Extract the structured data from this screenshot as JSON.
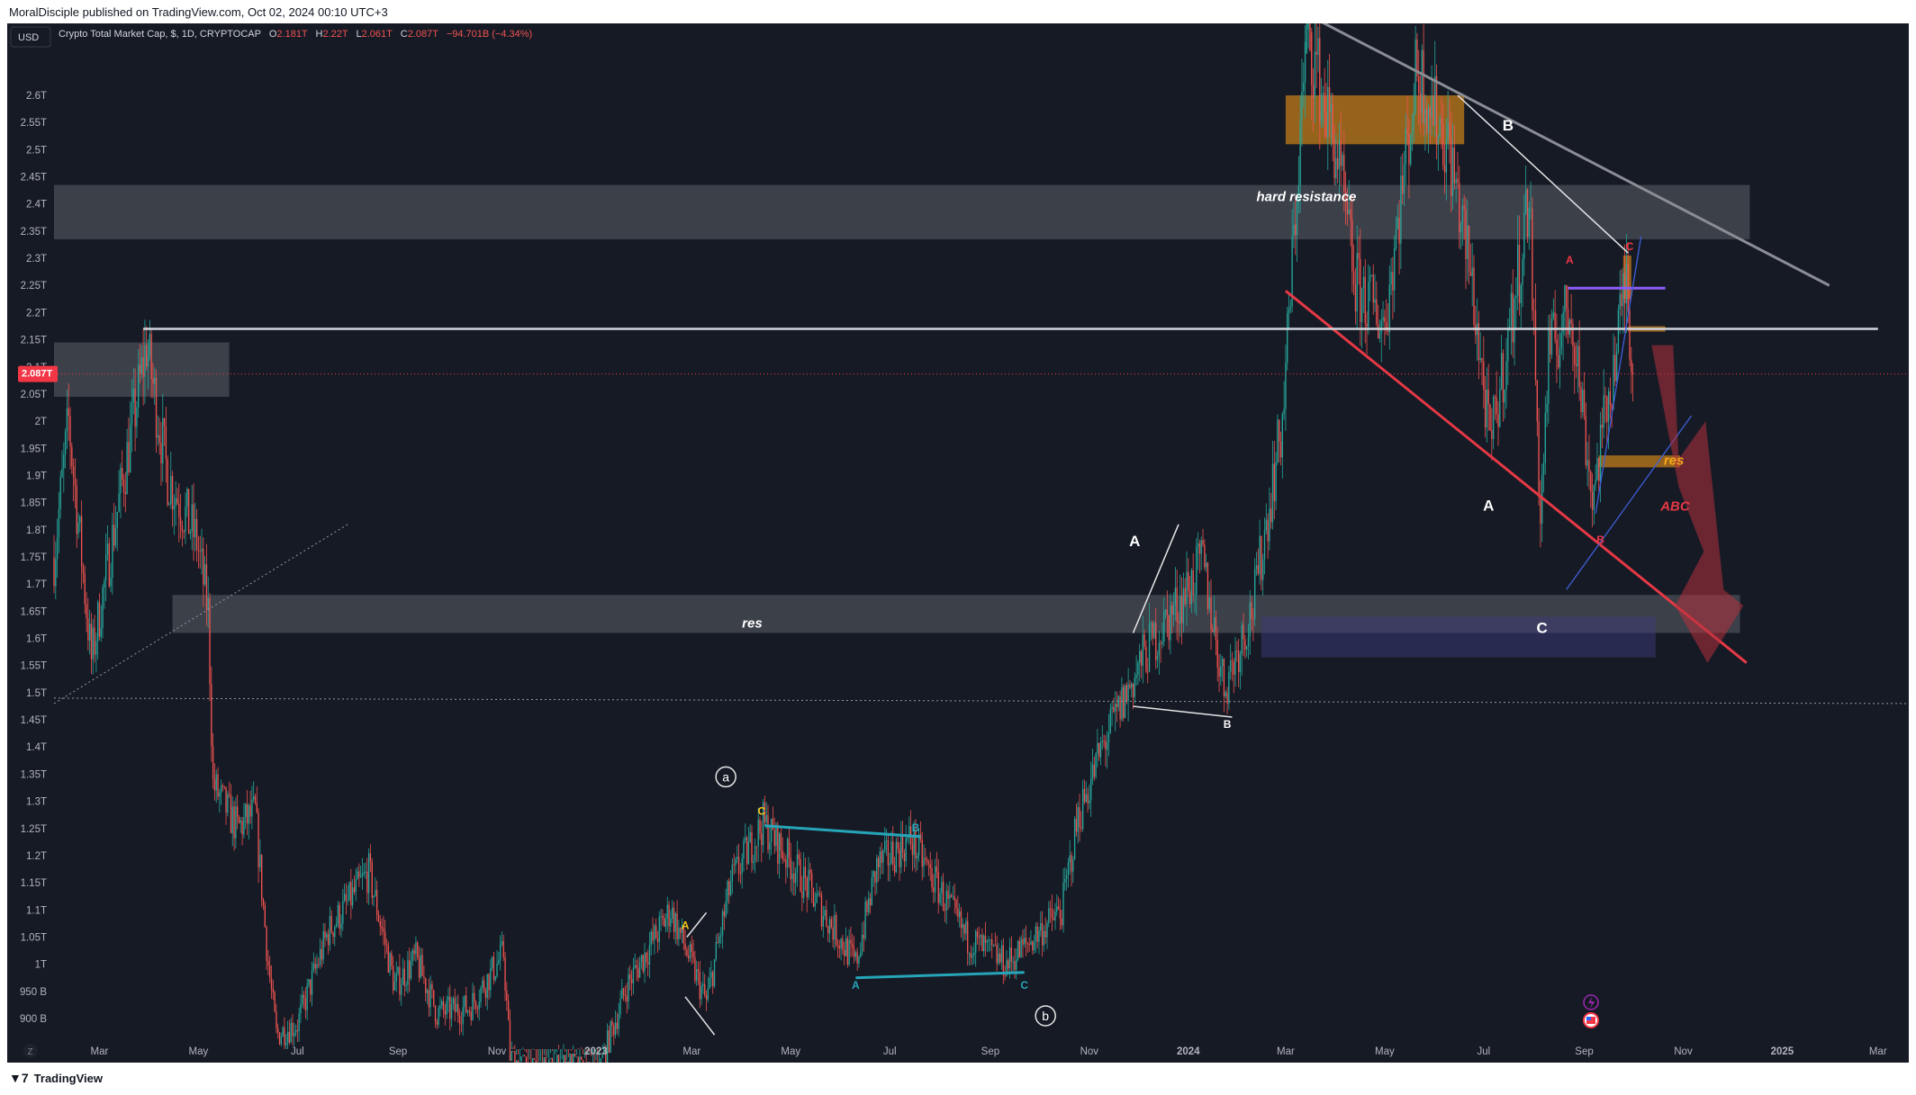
{
  "header": {
    "publisher_line": "MoralDisciple published on TradingView.com, Oct 02, 2024 00:10 UTC+3",
    "currency_button": "USD",
    "symbol_title": "Crypto Total Market Cap, $, 1D, CRYPTOCAP",
    "ohlc": {
      "o_label": "O",
      "o_value": "2.181T",
      "h_label": "H",
      "h_value": "2.22T",
      "l_label": "L",
      "l_value": "2.061T",
      "c_label": "C",
      "c_value": "2.087T",
      "change": "−94.701B (−4.34%)"
    },
    "price_tag": "2.087T",
    "z_button": "Z"
  },
  "footer": {
    "logo_text": "TradingView"
  },
  "colors": {
    "background": "#161a25",
    "up_candle": "#26a69a",
    "down_candle": "#ef5350",
    "resistance_zone": "#5d6068",
    "orange_zone": "#c17c1b",
    "red_trend": "#e53945",
    "grey_trend": "#8a8d94",
    "cyan_line": "#26a5b8",
    "purple_line": "#8a5cf6",
    "blue_line": "#3f5fd8"
  },
  "chart_data": {
    "type": "candlestick",
    "title": "Crypto Total Market Cap, $, 1D, CRYPTOCAP",
    "ylabel": "",
    "xlabel": "",
    "ylim": [
      880,
      2700
    ],
    "y_unit": "billion USD",
    "x_range": [
      "2022-02-01",
      "2025-03-20"
    ],
    "y_ticks": [
      "900 B",
      "950 B",
      "1T",
      "1.05T",
      "1.1T",
      "1.15T",
      "1.2T",
      "1.25T",
      "1.3T",
      "1.35T",
      "1.4T",
      "1.45T",
      "1.5T",
      "1.55T",
      "1.6T",
      "1.65T",
      "1.7T",
      "1.75T",
      "1.8T",
      "1.85T",
      "1.9T",
      "1.95T",
      "2T",
      "2.05T",
      "2.1T",
      "2.15T",
      "2.2T",
      "2.25T",
      "2.3T",
      "2.35T",
      "2.4T",
      "2.45T",
      "2.5T",
      "2.55T",
      "2.6T"
    ],
    "y_tick_values": [
      900,
      950,
      1000,
      1050,
      1100,
      1150,
      1200,
      1250,
      1300,
      1350,
      1400,
      1450,
      1500,
      1550,
      1600,
      1650,
      1700,
      1750,
      1800,
      1850,
      1900,
      1950,
      2000,
      2050,
      2100,
      2150,
      2200,
      2250,
      2300,
      2350,
      2400,
      2450,
      2500,
      2550,
      2600
    ],
    "x_ticks": [
      {
        "label": "Mar",
        "date": "2022-03-01",
        "bold": false
      },
      {
        "label": "May",
        "date": "2022-05-01",
        "bold": false
      },
      {
        "label": "Jul",
        "date": "2022-07-01",
        "bold": false
      },
      {
        "label": "Sep",
        "date": "2022-09-01",
        "bold": false
      },
      {
        "label": "Nov",
        "date": "2022-11-01",
        "bold": false
      },
      {
        "label": "2023",
        "date": "2023-01-01",
        "bold": true
      },
      {
        "label": "Mar",
        "date": "2023-03-01",
        "bold": false
      },
      {
        "label": "May",
        "date": "2023-05-01",
        "bold": false
      },
      {
        "label": "Jul",
        "date": "2023-07-01",
        "bold": false
      },
      {
        "label": "Sep",
        "date": "2023-09-01",
        "bold": false
      },
      {
        "label": "Nov",
        "date": "2023-11-01",
        "bold": false
      },
      {
        "label": "2024",
        "date": "2024-01-01",
        "bold": true
      },
      {
        "label": "Mar",
        "date": "2024-03-01",
        "bold": false
      },
      {
        "label": "May",
        "date": "2024-05-01",
        "bold": false
      },
      {
        "label": "Jul",
        "date": "2024-07-01",
        "bold": false
      },
      {
        "label": "Sep",
        "date": "2024-09-01",
        "bold": false
      },
      {
        "label": "Nov",
        "date": "2024-11-01",
        "bold": false
      },
      {
        "label": "2025",
        "date": "2025-01-01",
        "bold": true
      },
      {
        "label": "Mar",
        "date": "2025-03-01",
        "bold": false
      }
    ],
    "price_path": [
      [
        "2022-02-01",
        1750
      ],
      [
        "2022-02-10",
        2000
      ],
      [
        "2022-02-24",
        1560
      ],
      [
        "2022-03-10",
        1800
      ],
      [
        "2022-03-30",
        2140
      ],
      [
        "2022-04-12",
        1900
      ],
      [
        "2022-04-30",
        1780
      ],
      [
        "2022-05-07",
        1650
      ],
      [
        "2022-05-10",
        1330
      ],
      [
        "2022-05-25",
        1250
      ],
      [
        "2022-06-05",
        1280
      ],
      [
        "2022-06-13",
        1000
      ],
      [
        "2022-06-18",
        870
      ],
      [
        "2022-07-01",
        890
      ],
      [
        "2022-07-20",
        1060
      ],
      [
        "2022-08-14",
        1170
      ],
      [
        "2022-08-30",
        960
      ],
      [
        "2022-09-12",
        1010
      ],
      [
        "2022-09-25",
        910
      ],
      [
        "2022-10-15",
        920
      ],
      [
        "2022-11-05",
        1020
      ],
      [
        "2022-11-09",
        830
      ],
      [
        "2022-11-25",
        800
      ],
      [
        "2022-12-15",
        820
      ],
      [
        "2023-01-01",
        790
      ],
      [
        "2023-01-20",
        960
      ],
      [
        "2023-02-16",
        1100
      ],
      [
        "2023-03-10",
        930
      ],
      [
        "2023-03-25",
        1150
      ],
      [
        "2023-04-14",
        1260
      ],
      [
        "2023-05-12",
        1140
      ],
      [
        "2023-06-10",
        1000
      ],
      [
        "2023-06-23",
        1180
      ],
      [
        "2023-07-14",
        1230
      ],
      [
        "2023-08-17",
        1050
      ],
      [
        "2023-09-11",
        1000
      ],
      [
        "2023-10-15",
        1100
      ],
      [
        "2023-10-25",
        1270
      ],
      [
        "2023-11-09",
        1400
      ],
      [
        "2023-12-05",
        1570
      ],
      [
        "2023-12-27",
        1670
      ],
      [
        "2024-01-10",
        1740
      ],
      [
        "2024-01-23",
        1510
      ],
      [
        "2024-02-10",
        1660
      ],
      [
        "2024-02-28",
        2000
      ],
      [
        "2024-03-14",
        2720
      ],
      [
        "2024-04-01",
        2500
      ],
      [
        "2024-04-13",
        2250
      ],
      [
        "2024-05-01",
        2180
      ],
      [
        "2024-05-21",
        2650
      ],
      [
        "2024-06-10",
        2500
      ],
      [
        "2024-06-24",
        2250
      ],
      [
        "2024-07-05",
        1950
      ],
      [
        "2024-07-20",
        2220
      ],
      [
        "2024-07-29",
        2420
      ],
      [
        "2024-08-05",
        1820
      ],
      [
        "2024-08-10",
        2120
      ],
      [
        "2024-08-24",
        2210
      ],
      [
        "2024-09-06",
        1860
      ],
      [
        "2024-09-20",
        2120
      ],
      [
        "2024-09-27",
        2270
      ],
      [
        "2024-10-01",
        2087
      ]
    ],
    "last_close": 2087,
    "annotations": {
      "zones": [
        {
          "kind": "resistance",
          "label": "hard resistance",
          "x0": "2022-02-01",
          "x1": "2024-12-12",
          "y0": 2335,
          "y1": 2435
        },
        {
          "kind": "resistance",
          "label": "",
          "x0": "2022-02-01",
          "x1": "2022-05-20",
          "y0": 2045,
          "y1": 2145
        },
        {
          "kind": "resistance",
          "label": "res",
          "x0": "2022-04-15",
          "x1": "2024-12-06",
          "y0": 1610,
          "y1": 1680
        },
        {
          "kind": "purple",
          "label": "",
          "x0": "2024-02-15",
          "x1": "2024-10-15",
          "y0": 1565,
          "y1": 1640
        },
        {
          "kind": "orange",
          "label": "",
          "x0": "2024-03-01",
          "x1": "2024-06-19",
          "y0": 2510,
          "y1": 2600
        },
        {
          "kind": "orange",
          "label": "res",
          "x0": "2024-09-10",
          "x1": "2024-10-30",
          "y0": 1915,
          "y1": 1937
        },
        {
          "kind": "orange",
          "label": "",
          "x0": "2024-09-25",
          "x1": "2024-09-30",
          "y0": 2225,
          "y1": 2305
        },
        {
          "kind": "orange",
          "label": "res",
          "x0": "2024-09-28",
          "x1": "2024-10-21",
          "y0": 2165,
          "y1": 2175
        }
      ],
      "lines": [
        {
          "kind": "grey_trend",
          "from": [
            "2024-03-20",
            2740
          ],
          "to": [
            "2025-01-30",
            2250
          ]
        },
        {
          "kind": "red_trend",
          "from": [
            "2024-03-01",
            2240
          ],
          "to": [
            "2024-12-10",
            1555
          ]
        },
        {
          "kind": "white_horizontal",
          "from": [
            "2022-03-28",
            2170
          ],
          "to": [
            "2025-03-01",
            2170
          ]
        },
        {
          "kind": "dotted_white",
          "from": [
            "2022-02-01",
            1480
          ],
          "to": [
            "2022-08-01",
            1810
          ]
        },
        {
          "kind": "dotted_white",
          "from": [
            "2022-02-01",
            1490
          ],
          "to": [
            "2025-03-20",
            1480
          ]
        },
        {
          "kind": "cyan",
          "from": [
            "2023-04-15",
            1255
          ],
          "to": [
            "2023-07-20",
            1235
          ]
        },
        {
          "kind": "cyan",
          "from": [
            "2023-06-10",
            975
          ],
          "to": [
            "2023-09-22",
            985
          ]
        },
        {
          "kind": "purple",
          "from": [
            "2024-08-22",
            2245
          ],
          "to": [
            "2024-10-21",
            2245
          ]
        },
        {
          "kind": "white_thin",
          "from": [
            "2024-06-15",
            2600
          ],
          "to": [
            "2024-09-28",
            2310
          ]
        },
        {
          "kind": "blue_thin",
          "from": [
            "2024-09-08",
            1830
          ],
          "to": [
            "2024-10-06",
            2340
          ]
        },
        {
          "kind": "blue_thin",
          "from": [
            "2024-08-21",
            1690
          ],
          "to": [
            "2024-11-06",
            2010
          ]
        },
        {
          "kind": "white_thin",
          "from": [
            "2023-11-28",
            1610
          ],
          "to": [
            "2023-12-26",
            1810
          ]
        },
        {
          "kind": "white_thin",
          "from": [
            "2023-11-28",
            1475
          ],
          "to": [
            "2024-01-28",
            1455
          ]
        },
        {
          "kind": "white_thin",
          "from": [
            "2023-02-26",
            1050
          ],
          "to": [
            "2023-03-10",
            1095
          ]
        },
        {
          "kind": "white_thin",
          "from": [
            "2023-02-25",
            940
          ],
          "to": [
            "2023-03-15",
            870
          ]
        }
      ],
      "labels": [
        {
          "text": "B",
          "at": [
            "2024-07-16",
            2535
          ],
          "color": "#ffffff"
        },
        {
          "text": "A",
          "at": [
            "2024-07-04",
            1835
          ],
          "color": "#ffffff"
        },
        {
          "text": "C",
          "at": [
            "2024-08-06",
            1610
          ],
          "color": "#ffffff"
        },
        {
          "text": "A",
          "at": [
            "2024-08-23",
            2290
          ],
          "color": "#f23645"
        },
        {
          "text": "B",
          "at": [
            "2024-09-11",
            1775
          ],
          "color": "#f23645"
        },
        {
          "text": "C",
          "at": [
            "2024-09-29",
            2315
          ],
          "color": "#f23645"
        },
        {
          "text": "ABC",
          "at": [
            "2024-10-27",
            1835
          ],
          "color": "#e53945"
        },
        {
          "text": "A",
          "at": [
            "2023-11-29",
            1770
          ],
          "color": "#ffffff"
        },
        {
          "text": "B",
          "at": [
            "2024-01-25",
            1435
          ],
          "color": "#ffffff"
        },
        {
          "text": "C",
          "at": [
            "2023-04-13",
            1275
          ],
          "color": "#f5c518"
        },
        {
          "text": "B",
          "at": [
            "2023-07-17",
            1245
          ],
          "color": "#26a5b8"
        },
        {
          "text": "A",
          "at": [
            "2023-06-10",
            955
          ],
          "color": "#26a5b8"
        },
        {
          "text": "C",
          "at": [
            "2023-09-22",
            955
          ],
          "color": "#26a5b8"
        },
        {
          "text": "A",
          "at": [
            "2023-02-25",
            1065
          ],
          "color": "#f5c518"
        }
      ],
      "zone_texts": [
        {
          "text": "hard resistance",
          "at": [
            "2024-02-12",
            2405
          ]
        },
        {
          "text": "res",
          "at": [
            "2023-04-01",
            1620
          ]
        },
        {
          "text": "res",
          "at": [
            "2024-10-20",
            1920
          ]
        }
      ],
      "circled": [
        {
          "text": "a",
          "at": [
            "2023-03-22",
            1345
          ]
        },
        {
          "text": "b",
          "at": [
            "2023-10-05",
            905
          ]
        }
      ]
    }
  }
}
